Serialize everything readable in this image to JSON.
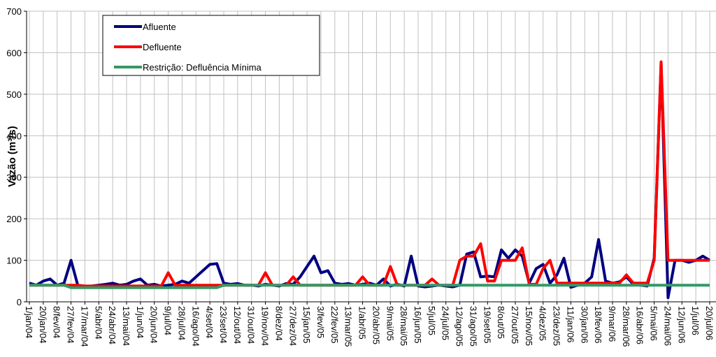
{
  "chart_data": {
    "type": "line",
    "ylabel": "Vazão (m³/s)",
    "categories": [
      "1/jan/04",
      null,
      "20/jan/04",
      null,
      "8/fev/04",
      null,
      "27/fev/04",
      null,
      "17/mar/04",
      null,
      "5/abr/04",
      null,
      "24/abr/04",
      null,
      "13/mai/04",
      null,
      "1/jun/04",
      null,
      "20/jun/04",
      null,
      "9/jul/04",
      null,
      "28/jul/04",
      null,
      "16/ago/04",
      null,
      "4/set/04",
      null,
      "23/set/04",
      null,
      "12/out/04",
      null,
      "31/out/04",
      null,
      "19/nov/04",
      null,
      "8/dez/04",
      null,
      "27/dez/04",
      null,
      "15/jan/05",
      null,
      "3/fev/05",
      null,
      "22/fev/05",
      null,
      "13/mar/05",
      null,
      "1/abr/05",
      null,
      "20/abr/05",
      null,
      "9/mai/05",
      null,
      "28/mai/05",
      null,
      "16/jun/05",
      null,
      "5/jul/05",
      null,
      "24/jul/05",
      null,
      "12/ago/05",
      null,
      "31/ago/05",
      null,
      "19/set/05",
      null,
      "8/out/05",
      null,
      "27/out/05",
      null,
      "15/nov/05",
      null,
      "4/dez/05",
      null,
      "23/dez/05",
      null,
      "11/jan/06",
      null,
      "30/jan/06",
      null,
      "18/fev/06",
      null,
      "9/mar/06",
      null,
      "28/mar/06",
      null,
      "16/abr/06",
      null,
      "5/mai/06",
      null,
      "24/mai/06",
      null,
      "12/jun/06",
      null,
      "1/jul/06",
      null,
      "20/jul/06"
    ],
    "series": [
      {
        "name": "Afluente",
        "color": "#000080",
        "values": [
          45,
          40,
          50,
          55,
          40,
          45,
          100,
          38,
          36,
          38,
          40,
          42,
          45,
          40,
          42,
          50,
          55,
          40,
          42,
          38,
          40,
          42,
          50,
          45,
          60,
          75,
          90,
          92,
          45,
          42,
          44,
          40,
          40,
          38,
          42,
          40,
          38,
          44,
          42,
          60,
          85,
          110,
          70,
          75,
          45,
          42,
          44,
          40,
          42,
          45,
          40,
          55,
          38,
          42,
          38,
          110,
          38,
          36,
          38,
          40,
          38,
          36,
          40,
          115,
          120,
          60,
          62,
          60,
          125,
          105,
          125,
          110,
          45,
          80,
          90,
          45,
          65,
          105,
          35,
          40,
          45,
          60,
          150,
          50,
          45,
          48,
          60,
          42,
          40,
          38,
          105,
          575,
          10,
          100,
          100,
          95,
          100,
          110,
          100
        ]
      },
      {
        "name": "Defluente",
        "color": "#ff0000",
        "values": [
          40,
          40,
          40,
          40,
          40,
          40,
          40,
          40,
          38,
          38,
          38,
          38,
          38,
          38,
          38,
          38,
          38,
          38,
          38,
          38,
          70,
          40,
          40,
          40,
          40,
          40,
          40,
          40,
          40,
          40,
          40,
          40,
          40,
          40,
          70,
          40,
          40,
          40,
          60,
          40,
          40,
          40,
          40,
          40,
          40,
          40,
          40,
          40,
          60,
          40,
          40,
          40,
          85,
          40,
          40,
          40,
          40,
          40,
          55,
          40,
          40,
          40,
          100,
          110,
          110,
          140,
          50,
          50,
          100,
          100,
          100,
          130,
          42,
          42,
          80,
          100,
          45,
          45,
          45,
          45,
          45,
          45,
          45,
          45,
          45,
          45,
          65,
          45,
          45,
          45,
          100,
          578,
          100,
          100,
          100,
          100,
          100,
          100,
          100
        ]
      },
      {
        "name": "Restrição: Defluência Mínima",
        "color": "#339966",
        "values": [
          40,
          40,
          40,
          40,
          40,
          40,
          34,
          34,
          34,
          34,
          34,
          34,
          34,
          34,
          34,
          34,
          34,
          34,
          34,
          34,
          34,
          34,
          34,
          34,
          34,
          34,
          34,
          34,
          40,
          40,
          40,
          40,
          40,
          40,
          40,
          40,
          40,
          40,
          40,
          40,
          40,
          40,
          40,
          40,
          40,
          40,
          40,
          40,
          40,
          40,
          40,
          40,
          40,
          40,
          40,
          40,
          40,
          40,
          40,
          40,
          40,
          40,
          40,
          40,
          40,
          40,
          40,
          40,
          40,
          40,
          40,
          40,
          40,
          40,
          40,
          40,
          40,
          40,
          40,
          40,
          40,
          40,
          40,
          40,
          40,
          40,
          40,
          40,
          40,
          40,
          40,
          40,
          40,
          40,
          40,
          40,
          40,
          40,
          40
        ]
      }
    ],
    "ylim": [
      0,
      700
    ],
    "yticks": [
      0,
      100,
      200,
      300,
      400,
      500,
      600,
      700
    ],
    "grid": true
  }
}
